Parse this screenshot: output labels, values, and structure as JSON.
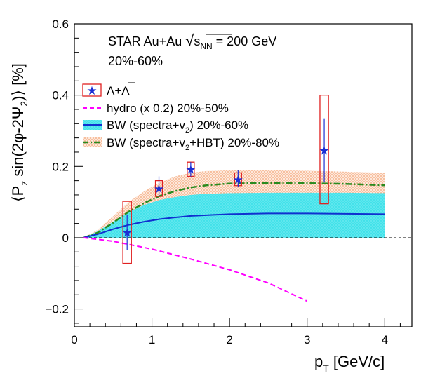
{
  "chart_data": {
    "type": "scatter",
    "xlabel_main": "p",
    "xlabel_sub": "T",
    "xlabel_unit": " [GeV/c]",
    "ylabel_parts": {
      "open": "⟨P",
      "sub_z": "z",
      "mid": " sin(2φ-2Ψ",
      "sub_2": "2",
      "close": ")⟩ [%]"
    },
    "xlim": [
      0,
      4.35
    ],
    "ylim": [
      -0.25,
      0.6
    ],
    "xticks": [
      "0",
      "1",
      "2",
      "3",
      "4"
    ],
    "yticks": [
      "−0.2",
      "0",
      "0.2",
      "0.4",
      "0.6"
    ],
    "annotation": {
      "line1_prefix": "STAR Au+Au ",
      "sqrt_symbol": "√",
      "sqrt_s": "s",
      "sqrt_sub": "NN",
      "line1_suffix": " = 200 GeV",
      "line2": "20%-60%"
    },
    "legend": {
      "data_label": "Λ+Λ",
      "hydro_label": "hydro (x 0.2) 20%-50%",
      "bw1_label_a": "BW (spectra+v",
      "bw1_label_sub": "2",
      "bw1_label_b": ") 20%-60%",
      "bw2_label_a": "BW (spectra+v",
      "bw2_label_sub": "2",
      "bw2_label_b": "+HBT) 20%-80%"
    },
    "colors": {
      "data": "#1c2ed4",
      "syst_box": "#e02020",
      "hydro": "#ff00ff",
      "bw1_band": "#19d9e3",
      "bw1_line": "#1030d0",
      "bw2_band": "#f4a373",
      "bw2_line": "#2a8a1f"
    },
    "data_points": [
      {
        "x": 0.68,
        "y": 0.015,
        "stat_lo": -0.035,
        "stat_hi": 0.065,
        "sys_lo": -0.072,
        "sys_hi": 0.102,
        "sys_halfwidth": 0.055
      },
      {
        "x": 1.09,
        "y": 0.138,
        "stat_lo": 0.118,
        "stat_hi": 0.172,
        "sys_lo": 0.116,
        "sys_hi": 0.16,
        "sys_halfwidth": 0.045
      },
      {
        "x": 1.5,
        "y": 0.192,
        "stat_lo": 0.172,
        "stat_hi": 0.212,
        "sys_lo": 0.172,
        "sys_hi": 0.212,
        "sys_halfwidth": 0.045
      },
      {
        "x": 2.11,
        "y": 0.163,
        "stat_lo": 0.142,
        "stat_hi": 0.19,
        "sys_lo": 0.146,
        "sys_hi": 0.182,
        "sys_halfwidth": 0.045
      },
      {
        "x": 3.22,
        "y": 0.245,
        "stat_lo": 0.155,
        "stat_hi": 0.335,
        "sys_lo": 0.095,
        "sys_hi": 0.4,
        "sys_halfwidth": 0.055
      }
    ],
    "bw2_x": [
      0.12,
      0.3,
      0.5,
      0.7,
      0.9,
      1.1,
      1.3,
      1.5,
      1.7,
      2.0,
      2.5,
      3.0,
      3.5,
      4.0
    ],
    "bw2_upper": [
      0.0,
      0.022,
      0.06,
      0.1,
      0.13,
      0.155,
      0.172,
      0.182,
      0.187,
      0.189,
      0.189,
      0.188,
      0.185,
      0.182
    ],
    "bw2_center": [
      0.0,
      0.014,
      0.042,
      0.073,
      0.097,
      0.117,
      0.131,
      0.141,
      0.147,
      0.152,
      0.154,
      0.153,
      0.151,
      0.147
    ],
    "bw2_lower": [
      0.0,
      0.008,
      0.026,
      0.046,
      0.064,
      0.08,
      0.092,
      0.1,
      0.106,
      0.112,
      0.115,
      0.116,
      0.115,
      0.113
    ],
    "bw1_x": [
      0.12,
      0.3,
      0.5,
      0.7,
      0.9,
      1.1,
      1.3,
      1.5,
      1.7,
      2.0,
      2.5,
      3.0,
      3.5,
      4.0
    ],
    "bw1_upper": [
      0.0,
      0.018,
      0.045,
      0.072,
      0.092,
      0.106,
      0.114,
      0.12,
      0.123,
      0.125,
      0.126,
      0.126,
      0.126,
      0.125
    ],
    "bw1_center": [
      0.0,
      0.01,
      0.024,
      0.036,
      0.045,
      0.052,
      0.057,
      0.061,
      0.063,
      0.066,
      0.068,
      0.068,
      0.067,
      0.066
    ],
    "bw1_lower": [
      0.0,
      0.0,
      0.0,
      0.0,
      0.0,
      0.0,
      0.0,
      0.0,
      0.0,
      0.0,
      0.0,
      0.0,
      0.0,
      0.0
    ],
    "hydro_x": [
      0.12,
      0.5,
      1.0,
      1.5,
      2.0,
      2.5,
      3.0
    ],
    "hydro_y": [
      0.0,
      -0.01,
      -0.032,
      -0.06,
      -0.09,
      -0.127,
      -0.178
    ],
    "zero_line": true
  }
}
